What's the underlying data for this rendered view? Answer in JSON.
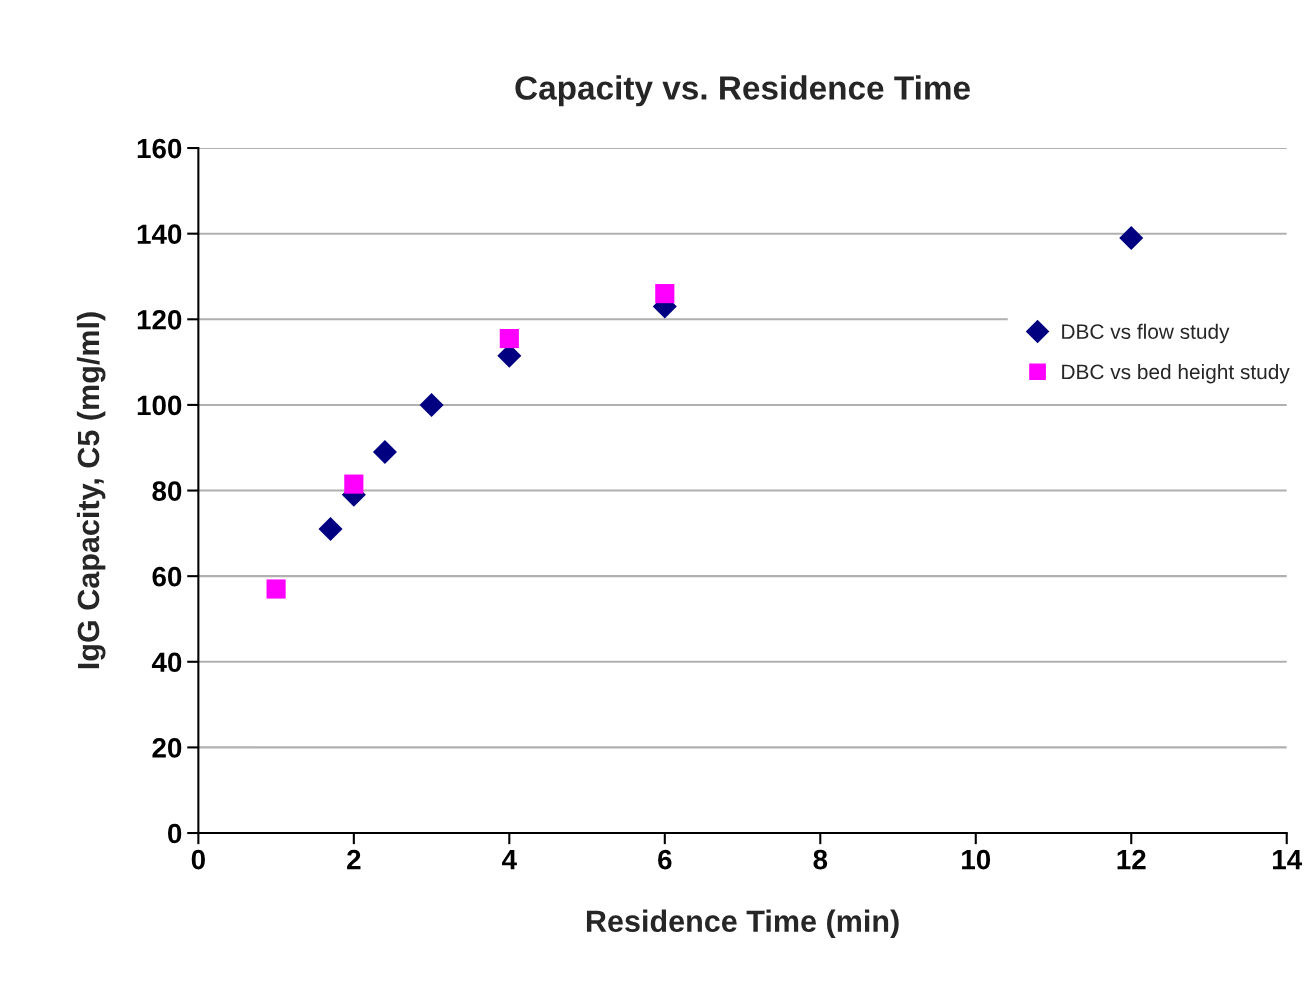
{
  "chart_data": {
    "type": "scatter",
    "title": "Capacity vs. Residence Time",
    "xlabel": "Residence Time (min)",
    "ylabel": "IgG Capacity, C5 (mg/ml)",
    "series": [
      {
        "name": "DBC vs flow study",
        "color": "#000080",
        "marker": "diamond",
        "x": [
          1.7,
          2,
          2.4,
          3,
          4,
          6,
          12
        ],
        "values": [
          71,
          79,
          89,
          100,
          111.5,
          123,
          139
        ]
      },
      {
        "name": "DBC vs bed height study",
        "color": "#ff00ff",
        "marker": "square",
        "x": [
          1,
          2,
          4,
          6
        ],
        "values": [
          57,
          81.5,
          115.5,
          126
        ]
      }
    ],
    "xlim": [
      0,
      14
    ],
    "xticks": [
      0,
      2,
      4,
      6,
      8,
      10,
      12,
      14
    ],
    "ylim": [
      0,
      160
    ],
    "yticks": [
      0,
      20,
      40,
      60,
      80,
      100,
      120,
      140,
      160
    ],
    "grid": "y",
    "legend": "right"
  }
}
